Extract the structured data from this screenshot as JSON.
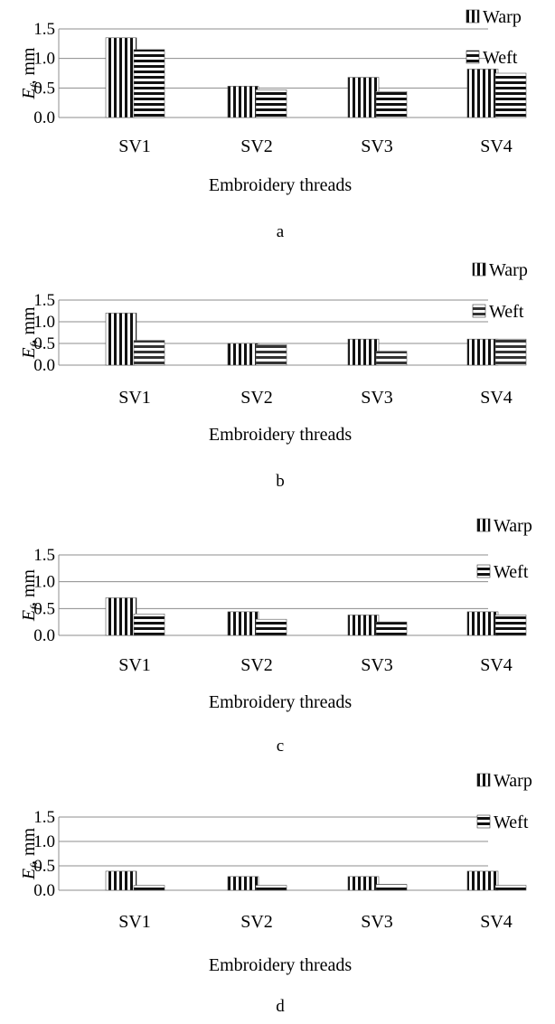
{
  "chart_data": [
    {
      "type": "bar",
      "panel_label": "a",
      "ylabel_symbol": "E",
      "ylabel_subscript": "f",
      "ylabel_unit": ", mm",
      "xlabel": "Embroidery threads",
      "categories": [
        "SV1",
        "SV2",
        "SV3",
        "SV4"
      ],
      "ylim": [
        0,
        1.5
      ],
      "yticks": [
        "0.0",
        "0.5",
        "1.0",
        "1.5"
      ],
      "grid": true,
      "legend_position": "top-right",
      "series": [
        {
          "name": "Warp",
          "pattern": "vertical-stripes",
          "values": [
            1.35,
            0.53,
            0.68,
            0.82
          ]
        },
        {
          "name": "Weft",
          "pattern": "horizontal-stripes",
          "values": [
            1.15,
            0.47,
            0.44,
            0.75
          ]
        }
      ]
    },
    {
      "type": "bar",
      "panel_label": "b",
      "ylabel_symbol": "E",
      "ylabel_subscript": "f",
      "ylabel_unit": ", mm",
      "xlabel": "Embroidery threads",
      "categories": [
        "SV1",
        "SV2",
        "SV3",
        "SV4"
      ],
      "ylim": [
        0,
        1.5
      ],
      "yticks": [
        "0.0",
        "0.5",
        "1.0",
        "1.5"
      ],
      "grid": true,
      "legend_position": "top-right",
      "series": [
        {
          "name": "Warp",
          "pattern": "vertical-stripes",
          "values": [
            1.2,
            0.5,
            0.6,
            0.6
          ]
        },
        {
          "name": "Weft",
          "pattern": "horizontal-stripes",
          "values": [
            0.57,
            0.47,
            0.32,
            0.6
          ]
        }
      ]
    },
    {
      "type": "bar",
      "panel_label": "c",
      "ylabel_symbol": "E",
      "ylabel_subscript": "f",
      "ylabel_unit": ", mm",
      "xlabel": "Embroidery threads",
      "categories": [
        "SV1",
        "SV2",
        "SV3",
        "SV4"
      ],
      "ylim": [
        0,
        1.5
      ],
      "yticks": [
        "0.0",
        "0.5",
        "1.0",
        "1.5"
      ],
      "grid": true,
      "legend_position": "top-right",
      "series": [
        {
          "name": "Warp",
          "pattern": "vertical-stripes",
          "values": [
            0.7,
            0.44,
            0.38,
            0.44
          ]
        },
        {
          "name": "Weft",
          "pattern": "horizontal-stripes",
          "values": [
            0.4,
            0.3,
            0.25,
            0.38
          ]
        }
      ]
    },
    {
      "type": "bar",
      "panel_label": "d",
      "ylabel_symbol": "E",
      "ylabel_subscript": "f",
      "ylabel_unit": ", mm",
      "xlabel": "Embroidery threads",
      "categories": [
        "SV1",
        "SV2",
        "SV3",
        "SV4"
      ],
      "ylim": [
        0,
        1.5
      ],
      "yticks": [
        "0.0",
        "0.5",
        "1.0",
        "1.5"
      ],
      "grid": true,
      "legend_position": "top-right",
      "series": [
        {
          "name": "Warp",
          "pattern": "vertical-stripes",
          "values": [
            0.39,
            0.28,
            0.28,
            0.39
          ]
        },
        {
          "name": "Weft",
          "pattern": "horizontal-stripes",
          "values": [
            0.1,
            0.1,
            0.12,
            0.1
          ]
        }
      ]
    }
  ]
}
